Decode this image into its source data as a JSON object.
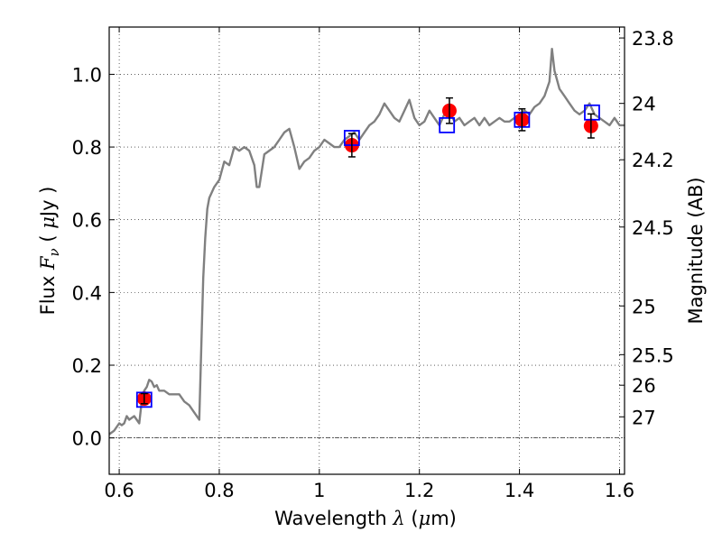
{
  "chart_data": {
    "type": "line",
    "title": "",
    "xlabel": "Wavelength",
    "xlabel_math": "λ",
    "xlabel_unit_open": " (",
    "xlabel_unit_mu": "μ",
    "xlabel_unit_rest": "m)",
    "ylabel": "Flux",
    "ylabel_math": "F",
    "ylabel_math_sub": "ν",
    "ylabel_unit_open": " ( ",
    "ylabel_unit_mu": "μ",
    "ylabel_unit_rest": "Jy )",
    "y2label": "Magnitude (AB)",
    "xlim": [
      0.58,
      1.61
    ],
    "ylim": [
      -0.1,
      1.13
    ],
    "grid": true,
    "x_ticks": [
      {
        "value": 0.6,
        "label": "0.6"
      },
      {
        "value": 0.8,
        "label": "0.8"
      },
      {
        "value": 1.0,
        "label": "1"
      },
      {
        "value": 1.2,
        "label": "1.2"
      },
      {
        "value": 1.4,
        "label": "1.4"
      },
      {
        "value": 1.6,
        "label": "1.6"
      }
    ],
    "y_ticks": [
      {
        "value": 0.0,
        "label": "0.0"
      },
      {
        "value": 0.2,
        "label": "0.2"
      },
      {
        "value": 0.4,
        "label": "0.4"
      },
      {
        "value": 0.6,
        "label": "0.6"
      },
      {
        "value": 0.8,
        "label": "0.8"
      },
      {
        "value": 1.0,
        "label": "1.0"
      }
    ],
    "magnitude_ticks": [
      {
        "flux": 1.1,
        "label": "23.8"
      },
      {
        "flux": 0.92,
        "label": "24"
      },
      {
        "flux": 0.765,
        "label": "24.2"
      },
      {
        "flux": 0.58,
        "label": "24.5"
      },
      {
        "flux": 0.363,
        "label": "25"
      },
      {
        "flux": 0.229,
        "label": "25.5"
      },
      {
        "flux": 0.145,
        "label": "26"
      },
      {
        "flux": 0.058,
        "label": "27"
      }
    ],
    "zero_line": 0.0,
    "series": [
      {
        "kind": "spectrum",
        "color": "#808080",
        "x": [
          0.58,
          0.59,
          0.6,
          0.605,
          0.61,
          0.615,
          0.62,
          0.625,
          0.63,
          0.635,
          0.64,
          0.645,
          0.65,
          0.655,
          0.66,
          0.665,
          0.67,
          0.675,
          0.68,
          0.69,
          0.7,
          0.71,
          0.72,
          0.73,
          0.74,
          0.75,
          0.76,
          0.765,
          0.768,
          0.772,
          0.776,
          0.78,
          0.79,
          0.8,
          0.81,
          0.82,
          0.83,
          0.84,
          0.85,
          0.86,
          0.87,
          0.875,
          0.88,
          0.89,
          0.9,
          0.91,
          0.92,
          0.93,
          0.94,
          0.95,
          0.96,
          0.97,
          0.98,
          0.99,
          1.0,
          1.01,
          1.02,
          1.03,
          1.04,
          1.05,
          1.06,
          1.07,
          1.08,
          1.09,
          1.1,
          1.11,
          1.12,
          1.13,
          1.14,
          1.15,
          1.16,
          1.17,
          1.18,
          1.19,
          1.2,
          1.21,
          1.22,
          1.23,
          1.24,
          1.25,
          1.26,
          1.27,
          1.28,
          1.29,
          1.3,
          1.31,
          1.32,
          1.33,
          1.34,
          1.35,
          1.36,
          1.37,
          1.38,
          1.39,
          1.4,
          1.41,
          1.42,
          1.43,
          1.44,
          1.45,
          1.46,
          1.465,
          1.47,
          1.48,
          1.49,
          1.5,
          1.51,
          1.52,
          1.53,
          1.54,
          1.55,
          1.56,
          1.57,
          1.58,
          1.59,
          1.6,
          1.61
        ],
        "y": [
          0.01,
          0.02,
          0.04,
          0.035,
          0.04,
          0.06,
          0.05,
          0.055,
          0.06,
          0.05,
          0.04,
          0.1,
          0.13,
          0.14,
          0.16,
          0.155,
          0.14,
          0.145,
          0.13,
          0.13,
          0.12,
          0.12,
          0.12,
          0.1,
          0.09,
          0.07,
          0.05,
          0.3,
          0.44,
          0.55,
          0.63,
          0.66,
          0.69,
          0.71,
          0.76,
          0.75,
          0.8,
          0.79,
          0.8,
          0.79,
          0.75,
          0.69,
          0.69,
          0.78,
          0.79,
          0.8,
          0.82,
          0.84,
          0.85,
          0.8,
          0.74,
          0.76,
          0.77,
          0.79,
          0.8,
          0.82,
          0.81,
          0.8,
          0.8,
          0.82,
          0.83,
          0.84,
          0.82,
          0.84,
          0.86,
          0.87,
          0.89,
          0.92,
          0.9,
          0.88,
          0.87,
          0.9,
          0.93,
          0.88,
          0.86,
          0.87,
          0.9,
          0.88,
          0.86,
          0.89,
          0.9,
          0.87,
          0.88,
          0.86,
          0.87,
          0.88,
          0.86,
          0.88,
          0.86,
          0.87,
          0.88,
          0.87,
          0.87,
          0.88,
          0.89,
          0.9,
          0.89,
          0.91,
          0.92,
          0.94,
          0.98,
          1.07,
          1.01,
          0.96,
          0.94,
          0.92,
          0.9,
          0.89,
          0.9,
          0.92,
          0.89,
          0.88,
          0.87,
          0.86,
          0.88,
          0.86,
          0.86
        ]
      },
      {
        "kind": "model_photometry",
        "marker": "open-square",
        "color": "#0000ff",
        "x": [
          0.65,
          1.065,
          1.255,
          1.405,
          1.545
        ],
        "y": [
          0.105,
          0.825,
          0.86,
          0.875,
          0.895
        ]
      },
      {
        "kind": "observed_photometry",
        "marker": "filled-circle",
        "color": "#ff0000",
        "x": [
          0.65,
          1.065,
          1.26,
          1.405,
          1.543
        ],
        "y": [
          0.108,
          0.805,
          0.9,
          0.875,
          0.858
        ],
        "yerr": [
          0.014,
          0.032,
          0.035,
          0.03,
          0.033
        ]
      }
    ]
  }
}
